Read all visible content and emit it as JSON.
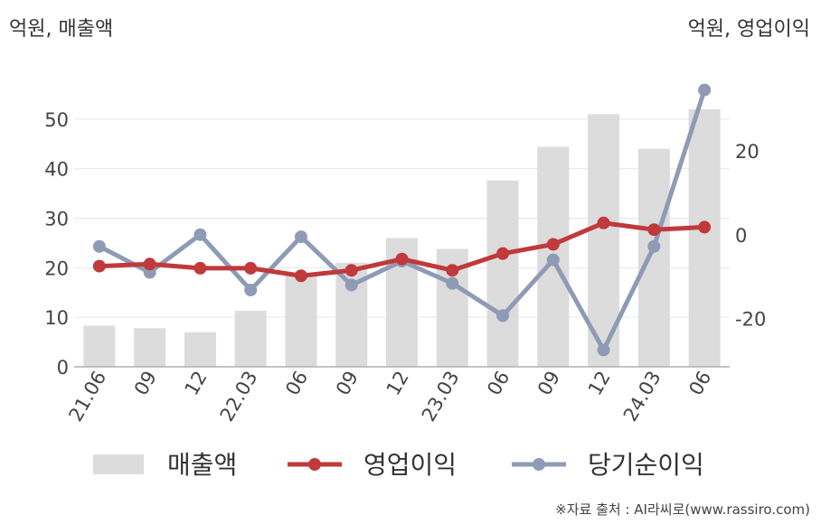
{
  "unit_left": "억원, 매출액",
  "unit_right": "억원, 영업이익",
  "source": "※자료 출처 : AI라씨로(www.rassiro.com)",
  "colors": {
    "revenue": "#dcdcdc",
    "operating": "#c0393b",
    "net": "#8f9bb5",
    "grid": "#e6e6e6",
    "axis": "#b0b0b0"
  },
  "chart_data": {
    "type": "bar+line",
    "categories": [
      "21.06",
      "09",
      "12",
      "22.03",
      "06",
      "09",
      "12",
      "23.03",
      "06",
      "09",
      "12",
      "24.03",
      "06"
    ],
    "series": [
      {
        "name": "매출액",
        "type": "bar",
        "axis": "left",
        "values": [
          8.3,
          7.8,
          7.0,
          11.3,
          18.7,
          21.0,
          26.0,
          23.8,
          37.6,
          44.4,
          51.0,
          44.0,
          52.0
        ]
      },
      {
        "name": "영업이익",
        "type": "line",
        "axis": "right",
        "values": [
          -7.5,
          -7.0,
          -8.0,
          -8.0,
          -9.8,
          -8.5,
          -5.8,
          -8.5,
          -4.5,
          -2.3,
          2.8,
          1.2,
          1.8
        ]
      },
      {
        "name": "당기순이익",
        "type": "line",
        "axis": "right",
        "values": [
          -2.8,
          -9.0,
          0.0,
          -13.2,
          -0.5,
          -12.0,
          -6.3,
          -11.6,
          -19.3,
          -6.0,
          -27.5,
          -2.8,
          34.5
        ]
      }
    ],
    "y_left": {
      "ticks": [
        0,
        10,
        20,
        30,
        40,
        50
      ],
      "ylim": [
        0,
        58
      ]
    },
    "y_right": {
      "ticks": [
        20,
        0,
        -20
      ],
      "ylim": [
        -31.5,
        37.0
      ]
    },
    "grid": true,
    "legend_position": "bottom"
  }
}
